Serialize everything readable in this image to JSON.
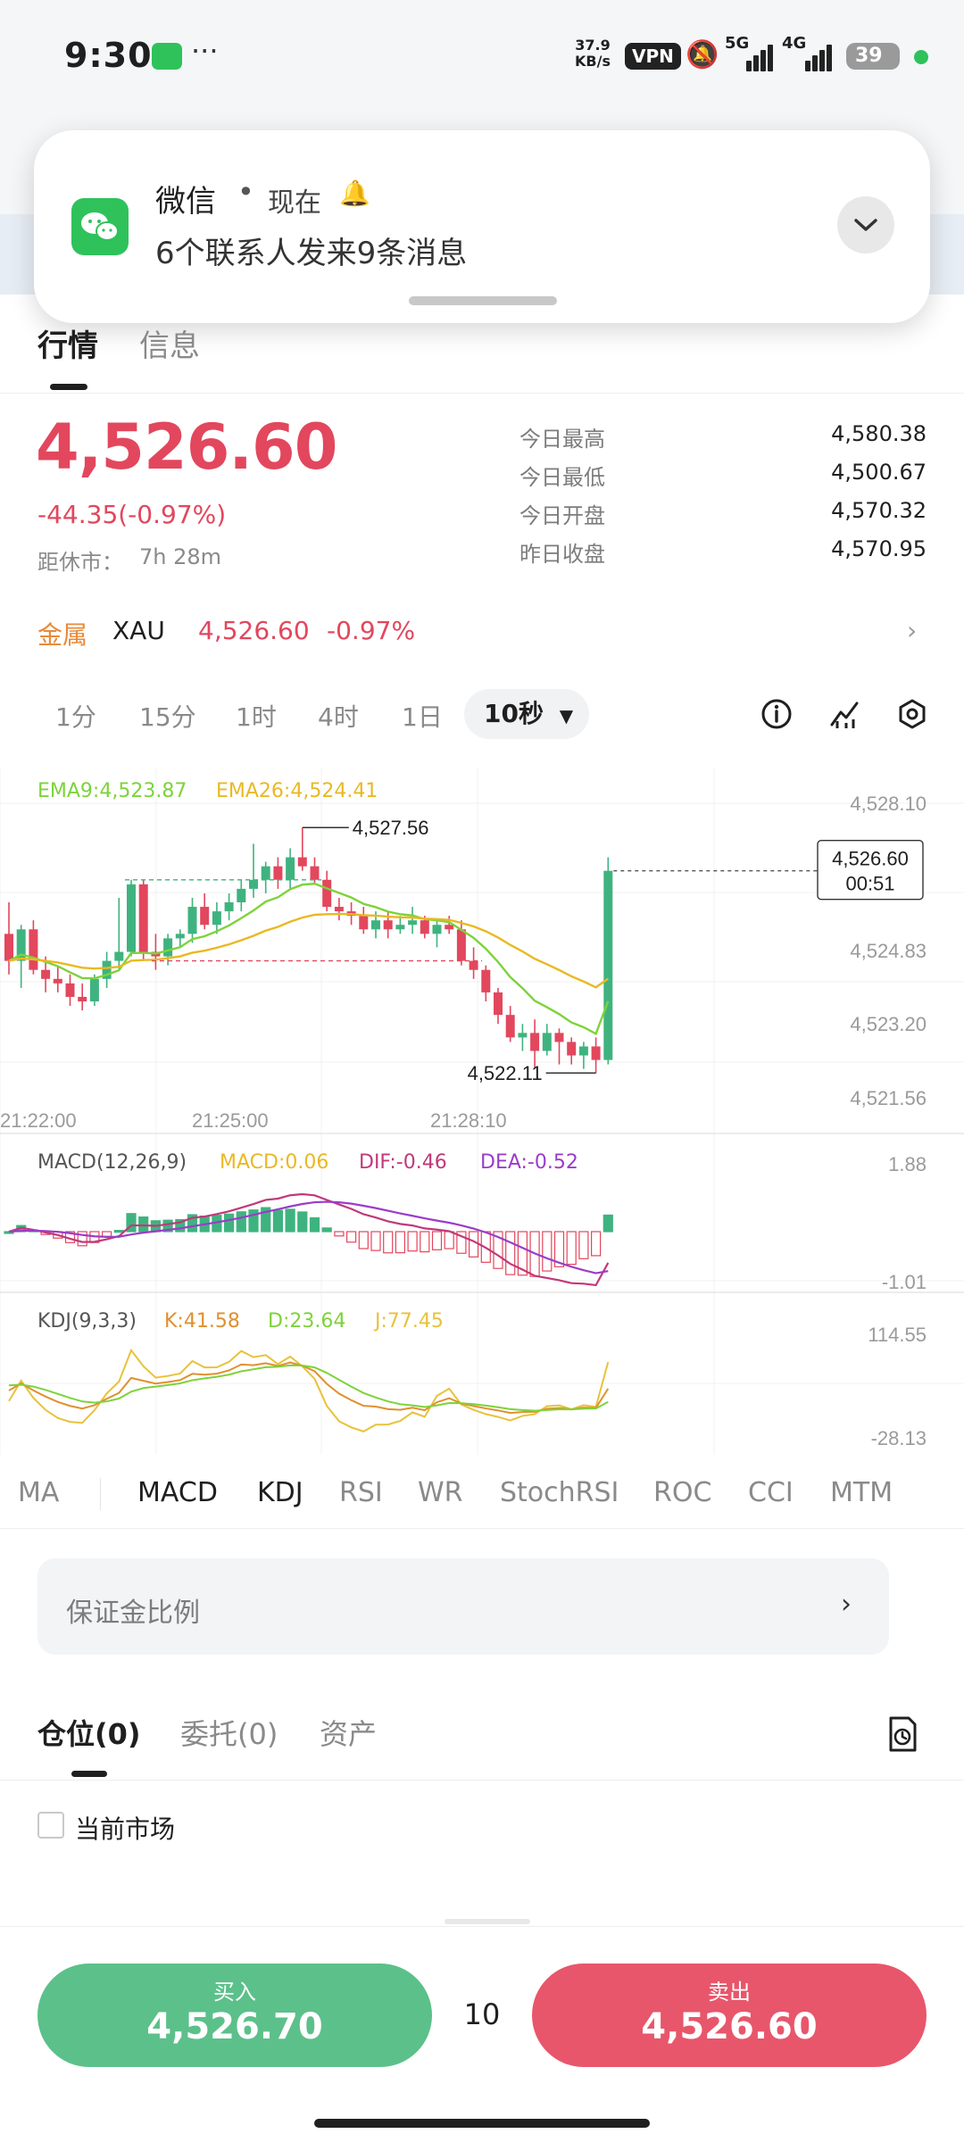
{
  "status_bar": {
    "time": "9:30",
    "dots": "···",
    "net_speed": "37.9",
    "net_unit": "KB/s",
    "vpn": "VPN",
    "network_5g": "5G",
    "network_4g": "4G",
    "battery": "39"
  },
  "notification": {
    "app": "微信",
    "separator": "•",
    "time": "现在",
    "message": "6个联系人发来9条消息"
  },
  "tabs": {
    "market": "行情",
    "info": "信息"
  },
  "price": {
    "last": "4,526.60",
    "change": "-44.35(-0.97%)",
    "close_label": "距休市：",
    "close_value": "7h 28m",
    "stats": [
      {
        "label": "今日最高",
        "value": "4,580.38"
      },
      {
        "label": "今日最低",
        "value": "4,500.67"
      },
      {
        "label": "今日开盘",
        "value": "4,570.32"
      },
      {
        "label": "昨日收盘",
        "value": "4,570.95"
      }
    ]
  },
  "metal": {
    "category": "金属",
    "symbol": "XAU",
    "price": "4,526.60",
    "change": "-0.97%"
  },
  "intervals": {
    "items": [
      "1分",
      "15分",
      "1时",
      "4时",
      "1日"
    ],
    "active": "10秒"
  },
  "chart_legend": {
    "ema9": "EMA9:4,523.87",
    "ema26": "EMA26:4,524.41",
    "macd_params": "MACD(12,26,9)",
    "macd": "MACD:0.06",
    "dif": "DIF:-0.46",
    "dea": "DEA:-0.52",
    "kdj_params": "KDJ(9,3,3)",
    "k": "K:41.58",
    "d": "D:23.64",
    "j": "J:77.45"
  },
  "chart_data": {
    "type": "candlestick",
    "xlabels": [
      "21:22:00",
      "21:25:00",
      "21:28:10"
    ],
    "y_ticks": [
      "4,528.10",
      "4,524.83",
      "4,523.20",
      "4,521.56"
    ],
    "ylim": [
      4521.56,
      4528.1
    ],
    "high_marker": "4,527.56",
    "low_marker": "4,522.11",
    "current_price": "4,526.60",
    "countdown": "00:51",
    "candles": [
      {
        "o": 4525.2,
        "h": 4525.9,
        "l": 4524.3,
        "c": 4524.6
      },
      {
        "o": 4524.6,
        "h": 4525.4,
        "l": 4524.0,
        "c": 4525.3
      },
      {
        "o": 4525.3,
        "h": 4525.5,
        "l": 4524.3,
        "c": 4524.4
      },
      {
        "o": 4524.4,
        "h": 4524.7,
        "l": 4523.9,
        "c": 4524.2
      },
      {
        "o": 4524.2,
        "h": 4524.5,
        "l": 4523.9,
        "c": 4524.1
      },
      {
        "o": 4524.1,
        "h": 4524.3,
        "l": 4523.6,
        "c": 4523.8
      },
      {
        "o": 4523.8,
        "h": 4524.1,
        "l": 4523.5,
        "c": 4523.7
      },
      {
        "o": 4523.7,
        "h": 4524.3,
        "l": 4523.6,
        "c": 4524.2
      },
      {
        "o": 4524.2,
        "h": 4524.8,
        "l": 4524.0,
        "c": 4524.6
      },
      {
        "o": 4524.6,
        "h": 4526.0,
        "l": 4524.4,
        "c": 4524.8
      },
      {
        "o": 4524.8,
        "h": 4526.4,
        "l": 4524.7,
        "c": 4526.3
      },
      {
        "o": 4526.3,
        "h": 4526.4,
        "l": 4524.6,
        "c": 4524.8
      },
      {
        "o": 4524.8,
        "h": 4525.2,
        "l": 4524.4,
        "c": 4524.7
      },
      {
        "o": 4524.7,
        "h": 4525.2,
        "l": 4524.5,
        "c": 4525.1
      },
      {
        "o": 4525.1,
        "h": 4525.3,
        "l": 4524.9,
        "c": 4525.2
      },
      {
        "o": 4525.2,
        "h": 4526.0,
        "l": 4525.0,
        "c": 4525.8
      },
      {
        "o": 4525.8,
        "h": 4526.1,
        "l": 4525.3,
        "c": 4525.4
      },
      {
        "o": 4525.4,
        "h": 4525.9,
        "l": 4525.2,
        "c": 4525.7
      },
      {
        "o": 4525.7,
        "h": 4526.1,
        "l": 4525.5,
        "c": 4525.9
      },
      {
        "o": 4525.9,
        "h": 4526.4,
        "l": 4525.7,
        "c": 4526.2
      },
      {
        "o": 4526.2,
        "h": 4527.2,
        "l": 4526.0,
        "c": 4526.4
      },
      {
        "o": 4526.4,
        "h": 4526.8,
        "l": 4526.1,
        "c": 4526.7
      },
      {
        "o": 4526.7,
        "h": 4526.9,
        "l": 4526.2,
        "c": 4526.4
      },
      {
        "o": 4526.4,
        "h": 4527.1,
        "l": 4526.2,
        "c": 4526.9
      },
      {
        "o": 4526.9,
        "h": 4527.56,
        "l": 4526.6,
        "c": 4526.7
      },
      {
        "o": 4526.7,
        "h": 4526.9,
        "l": 4526.3,
        "c": 4526.4
      },
      {
        "o": 4526.4,
        "h": 4526.6,
        "l": 4525.7,
        "c": 4525.8
      },
      {
        "o": 4525.8,
        "h": 4526.0,
        "l": 4525.5,
        "c": 4525.7
      },
      {
        "o": 4525.7,
        "h": 4525.9,
        "l": 4525.4,
        "c": 4525.6
      },
      {
        "o": 4525.6,
        "h": 4525.8,
        "l": 4525.2,
        "c": 4525.3
      },
      {
        "o": 4525.3,
        "h": 4525.7,
        "l": 4525.1,
        "c": 4525.5
      },
      {
        "o": 4525.5,
        "h": 4525.7,
        "l": 4525.1,
        "c": 4525.3
      },
      {
        "o": 4525.3,
        "h": 4525.6,
        "l": 4525.2,
        "c": 4525.4
      },
      {
        "o": 4525.4,
        "h": 4525.8,
        "l": 4525.2,
        "c": 4525.5
      },
      {
        "o": 4525.5,
        "h": 4525.6,
        "l": 4525.1,
        "c": 4525.2
      },
      {
        "o": 4525.2,
        "h": 4525.5,
        "l": 4524.9,
        "c": 4525.4
      },
      {
        "o": 4525.4,
        "h": 4525.6,
        "l": 4525.2,
        "c": 4525.3
      },
      {
        "o": 4525.3,
        "h": 4525.5,
        "l": 4524.5,
        "c": 4524.6
      },
      {
        "o": 4524.6,
        "h": 4524.9,
        "l": 4524.2,
        "c": 4524.4
      },
      {
        "o": 4524.4,
        "h": 4524.5,
        "l": 4523.7,
        "c": 4523.9
      },
      {
        "o": 4523.9,
        "h": 4524.0,
        "l": 4523.2,
        "c": 4523.4
      },
      {
        "o": 4523.4,
        "h": 4523.6,
        "l": 4522.8,
        "c": 4522.9
      },
      {
        "o": 4522.9,
        "h": 4523.2,
        "l": 4522.6,
        "c": 4523.0
      },
      {
        "o": 4523.0,
        "h": 4523.3,
        "l": 4522.2,
        "c": 4522.6
      },
      {
        "o": 4522.6,
        "h": 4523.2,
        "l": 4522.5,
        "c": 4523.0
      },
      {
        "o": 4523.0,
        "h": 4523.1,
        "l": 4522.3,
        "c": 4522.8
      },
      {
        "o": 4522.8,
        "h": 4522.9,
        "l": 4522.3,
        "c": 4522.5
      },
      {
        "o": 4522.5,
        "h": 4522.8,
        "l": 4522.2,
        "c": 4522.7
      },
      {
        "o": 4522.7,
        "h": 4522.9,
        "l": 4522.11,
        "c": 4522.4
      },
      {
        "o": 4522.4,
        "h": 4526.9,
        "l": 4522.3,
        "c": 4526.6
      }
    ],
    "macd_ticks": [
      "1.88",
      "-1.01"
    ],
    "kdj_ticks": [
      "114.55",
      "-28.13"
    ],
    "colors": {
      "up": "#3fb37f",
      "down": "#e2475d",
      "ema9": "#7dd33a",
      "ema26": "#e8b923",
      "dif": "#c0397a",
      "dea": "#9b3cc9",
      "macd": "#e8b923",
      "k": "#e0902e",
      "d": "#7dd33a",
      "j": "#e8c23a"
    }
  },
  "indicator_tabs": [
    "MA",
    "MACD",
    "KDJ",
    "RSI",
    "WR",
    "StochRSI",
    "ROC",
    "CCI",
    "MTM"
  ],
  "margin_row": {
    "label": "保证金比例"
  },
  "positions": {
    "positions_tab": "仓位(0)",
    "orders_tab": "委托(0)",
    "assets_tab": "资产",
    "current_market": "当前市场"
  },
  "trade": {
    "buy_label": "买入",
    "buy_price": "4,526.70",
    "quantity": "10",
    "sell_label": "卖出",
    "sell_price": "4,526.60"
  }
}
